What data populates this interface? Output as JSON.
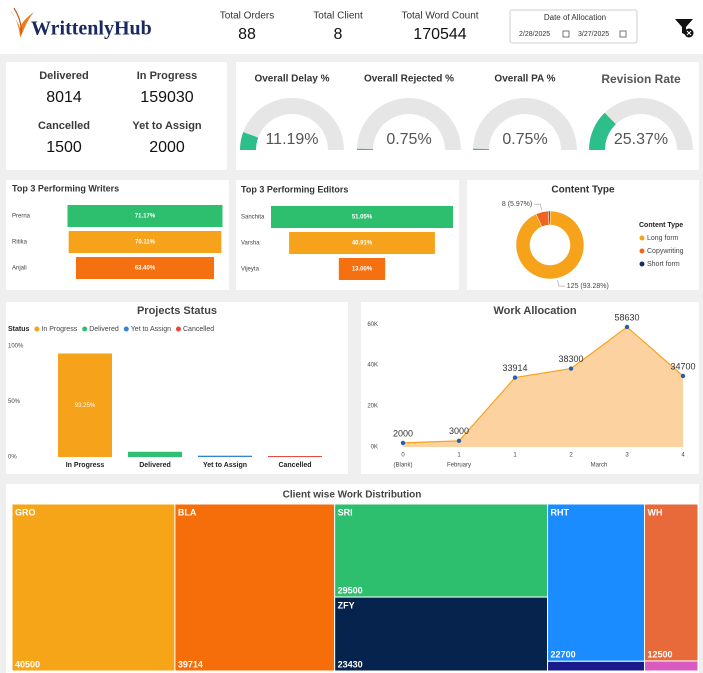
{
  "header": {
    "logo": "WrittenlyHub",
    "stats": [
      {
        "label": "Total Orders",
        "value": 88
      },
      {
        "label": "Total Client",
        "value": 8
      },
      {
        "label": "Total Word Count",
        "value": 170544
      }
    ],
    "date_filter": {
      "label": "Date of Allocation",
      "start": "2/28/2025",
      "end": "3/27/2025"
    }
  },
  "status_cards": [
    {
      "label": "Delivered",
      "value": 8014
    },
    {
      "label": "In Progress",
      "value": 159030
    },
    {
      "label": "Cancelled",
      "value": 1500
    },
    {
      "label": "Yet to Assign",
      "value": 2000
    }
  ],
  "chart_data": [
    {
      "type": "gauge",
      "title": "Overall Delay %",
      "values": [
        11.19
      ],
      "value_labels": [
        "11.19%"
      ],
      "range": [
        0,
        100
      ],
      "color": "#2dbf8a"
    },
    {
      "type": "gauge",
      "title": "Overall Rejected %",
      "values": [
        0.75
      ],
      "value_labels": [
        "0.75%"
      ],
      "range": [
        0,
        100
      ],
      "color": "#2dbf8a"
    },
    {
      "type": "gauge",
      "title": "Overall PA %",
      "values": [
        0.75
      ],
      "value_labels": [
        "0.75%"
      ],
      "range": [
        0,
        100
      ],
      "color": "#2dbf8a"
    },
    {
      "type": "gauge",
      "title": "Revision Rate",
      "values": [
        25.37
      ],
      "value_labels": [
        "25.37%"
      ],
      "range": [
        0,
        100
      ],
      "color": "#2dbf8a"
    },
    {
      "type": "funnel",
      "title": "Top 3 Performing Writers",
      "categories": [
        "Prerna",
        "Ritika",
        "Anjali"
      ],
      "values": [
        71.17,
        70.11,
        63.4
      ],
      "value_labels": [
        "71.17%",
        "70.11%",
        "63.40%"
      ],
      "colors": [
        "#2dbf6e",
        "#f7a21b",
        "#f57010"
      ]
    },
    {
      "type": "funnel",
      "title": "Top 3 Performing Editors",
      "categories": [
        "Sanchita",
        "Varsha",
        "Vijeyta"
      ],
      "values": [
        51.05,
        40.91,
        13.0
      ],
      "value_labels": [
        "51.05%",
        "40.91%",
        "13.00%"
      ],
      "colors": [
        "#2dbf6e",
        "#f7a21b",
        "#f57010"
      ]
    },
    {
      "type": "donut",
      "title": "Content Type",
      "legend_title": "Content Type",
      "categories": [
        "Long form",
        "Copywriting",
        "Short form"
      ],
      "values": [
        125,
        8,
        1
      ],
      "value_labels": [
        "125 (93.28%)",
        "8 (5.97%)",
        null
      ],
      "colors": [
        "#f7a21b",
        "#f0641e",
        "#1a2a5e"
      ]
    },
    {
      "type": "bar",
      "title": "Projects Status",
      "legend_title": "Status",
      "categories": [
        "In Progress",
        "Delivered",
        "Yet to Assign",
        "Cancelled"
      ],
      "values": [
        93.25,
        4.7,
        1.17,
        0.88
      ],
      "value_labels": [
        "93.25%",
        null,
        null,
        null
      ],
      "colors": [
        "#f7a21b",
        "#2dbf72",
        "#2f86d8",
        "#e8473a"
      ],
      "ylim": [
        0,
        100
      ],
      "yticks": [
        {
          "value": 0,
          "label": "0%"
        },
        {
          "value": 50,
          "label": "50%"
        },
        {
          "value": 100,
          "label": "100%"
        }
      ]
    },
    {
      "type": "area",
      "title": "Work Allocation",
      "categories": [
        "0",
        "1",
        "1",
        "2",
        "3",
        "4"
      ],
      "category_groups": [
        "(Blank)",
        "February",
        "March",
        null,
        null,
        null
      ],
      "values": [
        2000,
        3000,
        33914,
        38300,
        58630,
        34700
      ],
      "color": "#f7a21b",
      "fill": "#fcd3a0",
      "marker_color": "#2a5db0",
      "ylim": [
        0,
        64000
      ],
      "yticks": [
        {
          "value": 0,
          "label": "0K"
        },
        {
          "value": 20000,
          "label": "20K"
        },
        {
          "value": 40000,
          "label": "40K"
        },
        {
          "value": 60000,
          "label": "60K"
        }
      ]
    },
    {
      "type": "treemap",
      "title": "Client wise Work Distribution",
      "categories": [
        "GRO",
        "BLA",
        "SRI",
        "ZFY",
        "RHT",
        null,
        "WH",
        null
      ],
      "values": [
        40500,
        39714,
        29500,
        23430,
        22700,
        1400,
        12500,
        800
      ],
      "colors": [
        "#f7a518",
        "#f56e0a",
        "#2dbf6e",
        "#06234d",
        "#1a8cff",
        "#1a1a8c",
        "#e8693a",
        "#d95bc2"
      ]
    }
  ]
}
